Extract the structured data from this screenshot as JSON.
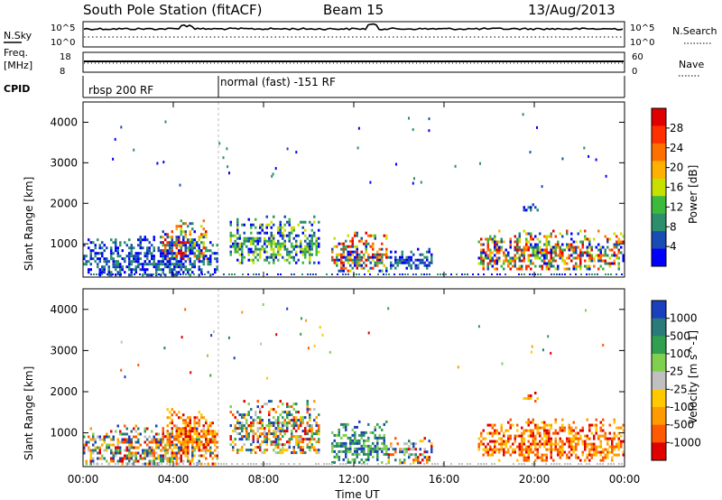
{
  "header": {
    "station": "South Pole Station (fitACF)",
    "beam": "Beam 15",
    "date": "13/Aug/2013"
  },
  "top_panels": {
    "nsky": {
      "label": "N.Sky",
      "tick_top": "10^5",
      "tick_bottom": "10^0",
      "right_label": "N.Search",
      "right_tick_top": "10^5",
      "right_tick_bottom": "10^0"
    },
    "freq": {
      "label_line1": "Freq.",
      "label_line2": "[MHz]",
      "tick_top": "18",
      "tick_bottom": "8",
      "right_label": "Nave",
      "right_tick_top": "60",
      "right_tick_bottom": "0"
    },
    "cpid": {
      "label": "CPID",
      "segments": [
        {
          "name": "rbsp 200 RF",
          "start_hour": 0
        },
        {
          "name": "normal (fast) -151 RF",
          "start_hour": 6
        }
      ]
    }
  },
  "colors": {
    "power": [
      "#0000ff",
      "#1a4db3",
      "#2a8f6a",
      "#3cba3c",
      "#c8e000",
      "#ffb000",
      "#ff7000",
      "#ff3000",
      "#e00000"
    ],
    "velocity": [
      "#e00000",
      "#ff5a00",
      "#ff9a00",
      "#ffc800",
      "#c0c0c0",
      "#80d050",
      "#30a050",
      "#2a7a7a",
      "#1a40c0"
    ]
  },
  "chart_data": [
    {
      "type": "heatmap",
      "title": "Power",
      "xlabel": "",
      "ylabel": "Slant Range [km]",
      "xlim": [
        0,
        24
      ],
      "ylim": [
        180,
        4500
      ],
      "x_ticks": [
        "00:00",
        "04:00",
        "08:00",
        "12:00",
        "16:00",
        "20:00",
        "00:00"
      ],
      "y_ticks": [
        1000,
        2000,
        3000,
        4000
      ],
      "colorbar": {
        "label": "Power [dB]",
        "ticks": [
          "28",
          "24",
          "20",
          "16",
          "12",
          "8",
          "4"
        ]
      },
      "regions": [
        {
          "t0": 0.0,
          "t1": 6.0,
          "r0": 250,
          "r1": 1200,
          "level": "low"
        },
        {
          "t0": 3.5,
          "t1": 5.5,
          "r0": 600,
          "r1": 1600,
          "level": "high"
        },
        {
          "t0": 6.5,
          "t1": 10.5,
          "r0": 500,
          "r1": 1700,
          "level": "mid"
        },
        {
          "t0": 11.0,
          "t1": 13.5,
          "r0": 300,
          "r1": 1300,
          "level": "high"
        },
        {
          "t0": 13.5,
          "t1": 15.5,
          "r0": 400,
          "r1": 900,
          "level": "low"
        },
        {
          "t0": 17.5,
          "t1": 24.0,
          "r0": 350,
          "r1": 1350,
          "level": "high"
        },
        {
          "t0": 19.5,
          "t1": 20.2,
          "r0": 1800,
          "r1": 2000,
          "level": "low"
        }
      ]
    },
    {
      "type": "heatmap",
      "title": "Velocity",
      "xlabel": "Time UT",
      "ylabel": "Slant Range [km]",
      "xlim": [
        0,
        24
      ],
      "ylim": [
        180,
        4500
      ],
      "x_ticks": [
        "00:00",
        "04:00",
        "08:00",
        "12:00",
        "16:00",
        "20:00",
        "00:00"
      ],
      "y_ticks": [
        1000,
        2000,
        3000,
        4000
      ],
      "colorbar": {
        "label": "Velocity [m s^-1]",
        "ticks": [
          "1000",
          "500",
          "100",
          "25",
          "-25",
          "-100",
          "-500",
          "-1000"
        ]
      },
      "regions": [
        {
          "t0": 0.0,
          "t1": 6.0,
          "r0": 250,
          "r1": 1200,
          "level": "mixed"
        },
        {
          "t0": 3.5,
          "t1": 6.0,
          "r0": 600,
          "r1": 1600,
          "level": "negative"
        },
        {
          "t0": 6.5,
          "t1": 10.5,
          "r0": 500,
          "r1": 1800,
          "level": "mixed"
        },
        {
          "t0": 11.0,
          "t1": 13.5,
          "r0": 300,
          "r1": 1300,
          "level": "positive"
        },
        {
          "t0": 13.5,
          "t1": 15.5,
          "r0": 300,
          "r1": 900,
          "level": "mixed"
        },
        {
          "t0": 17.5,
          "t1": 24.0,
          "r0": 350,
          "r1": 1350,
          "level": "negative"
        },
        {
          "t0": 19.5,
          "t1": 20.2,
          "r0": 1800,
          "r1": 2000,
          "level": "negative"
        }
      ]
    }
  ]
}
